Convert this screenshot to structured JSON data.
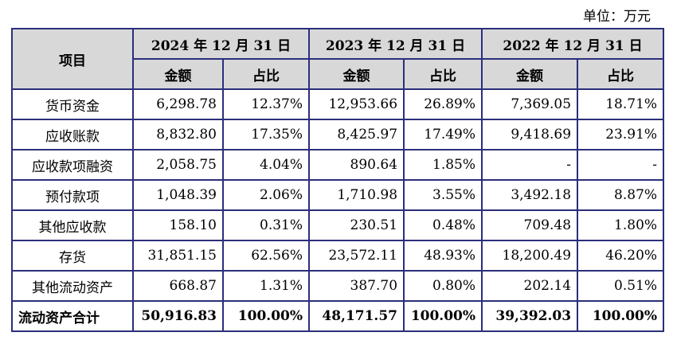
{
  "unit_label": "单位：万元",
  "header": {
    "item": "项目",
    "periods": [
      "2024 年 12 月 31 日",
      "2023 年 12 月 31 日",
      "2022 年 12 月 31 日"
    ],
    "amount": "金额",
    "ratio": "占比"
  },
  "rows": [
    {
      "label": "货币资金",
      "values": [
        "6,298.78",
        "12.37%",
        "12,953.66",
        "26.89%",
        "7,369.05",
        "18.71%"
      ]
    },
    {
      "label": "应收账款",
      "values": [
        "8,832.80",
        "17.35%",
        "8,425.97",
        "17.49%",
        "9,418.69",
        "23.91%"
      ]
    },
    {
      "label": "应收款项融资",
      "values": [
        "2,058.75",
        "4.04%",
        "890.64",
        "1.85%",
        "-",
        "-"
      ]
    },
    {
      "label": "预付款项",
      "values": [
        "1,048.39",
        "2.06%",
        "1,710.98",
        "3.55%",
        "3,492.18",
        "8.87%"
      ]
    },
    {
      "label": "其他应收款",
      "values": [
        "158.10",
        "0.31%",
        "230.51",
        "0.48%",
        "709.48",
        "1.80%"
      ]
    },
    {
      "label": "存货",
      "values": [
        "31,851.15",
        "62.56%",
        "23,572.11",
        "48.93%",
        "18,200.49",
        "46.20%"
      ]
    },
    {
      "label": "其他流动资产",
      "values": [
        "668.87",
        "1.31%",
        "387.70",
        "0.80%",
        "202.14",
        "0.51%"
      ]
    }
  ],
  "total": {
    "label": "流动资产合计",
    "values": [
      "50,916.83",
      "100.00%",
      "48,171.57",
      "100.00%",
      "39,392.03",
      "100.00%"
    ]
  }
}
